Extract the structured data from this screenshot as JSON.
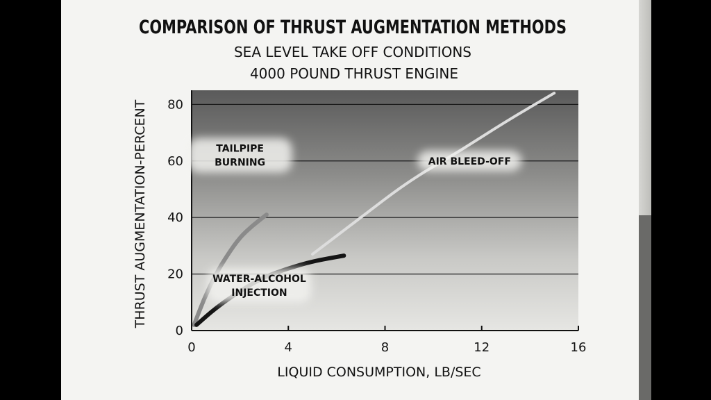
{
  "chart_data": {
    "type": "line",
    "title": "COMPARISON OF THRUST AUGMENTATION METHODS",
    "subtitle": [
      "SEA LEVEL TAKE OFF CONDITIONS",
      "4000 POUND THRUST ENGINE"
    ],
    "xlabel": "LIQUID CONSUMPTION, LB/SEC",
    "ylabel": "THRUST AUGMENTATION-PERCENT",
    "xlim": [
      0,
      16
    ],
    "ylim": [
      0,
      85
    ],
    "xticks": [
      0,
      4,
      8,
      12,
      16
    ],
    "yticks": [
      0,
      20,
      40,
      60,
      80
    ],
    "grid": "horizontal",
    "series": [
      {
        "name": "TAILPIPE BURNING",
        "label_lines": [
          "TAILPIPE",
          "BURNING"
        ],
        "color": "#8a8a8a",
        "x": [
          0.1,
          0.5,
          1.0,
          1.5,
          2.0,
          2.5,
          3.1
        ],
        "y": [
          2,
          11,
          20,
          27,
          33,
          37,
          41
        ]
      },
      {
        "name": "WATER-ALCOHOL INJECTION",
        "label_lines": [
          "WATER-ALCOHOL",
          "INJECTION"
        ],
        "color": "#141414",
        "x": [
          0.2,
          1.0,
          2.0,
          3.0,
          4.0,
          5.0,
          6.3
        ],
        "y": [
          2,
          8,
          14,
          19,
          22,
          24.5,
          26.5
        ]
      },
      {
        "name": "AIR BLEED-OFF",
        "label_lines": [
          "AIR BLEED-OFF"
        ],
        "color": "#dddddd",
        "x": [
          5.0,
          7.0,
          9.0,
          11.0,
          13.0,
          15.0
        ],
        "y": [
          27,
          40,
          53,
          63,
          74,
          84
        ]
      }
    ]
  }
}
